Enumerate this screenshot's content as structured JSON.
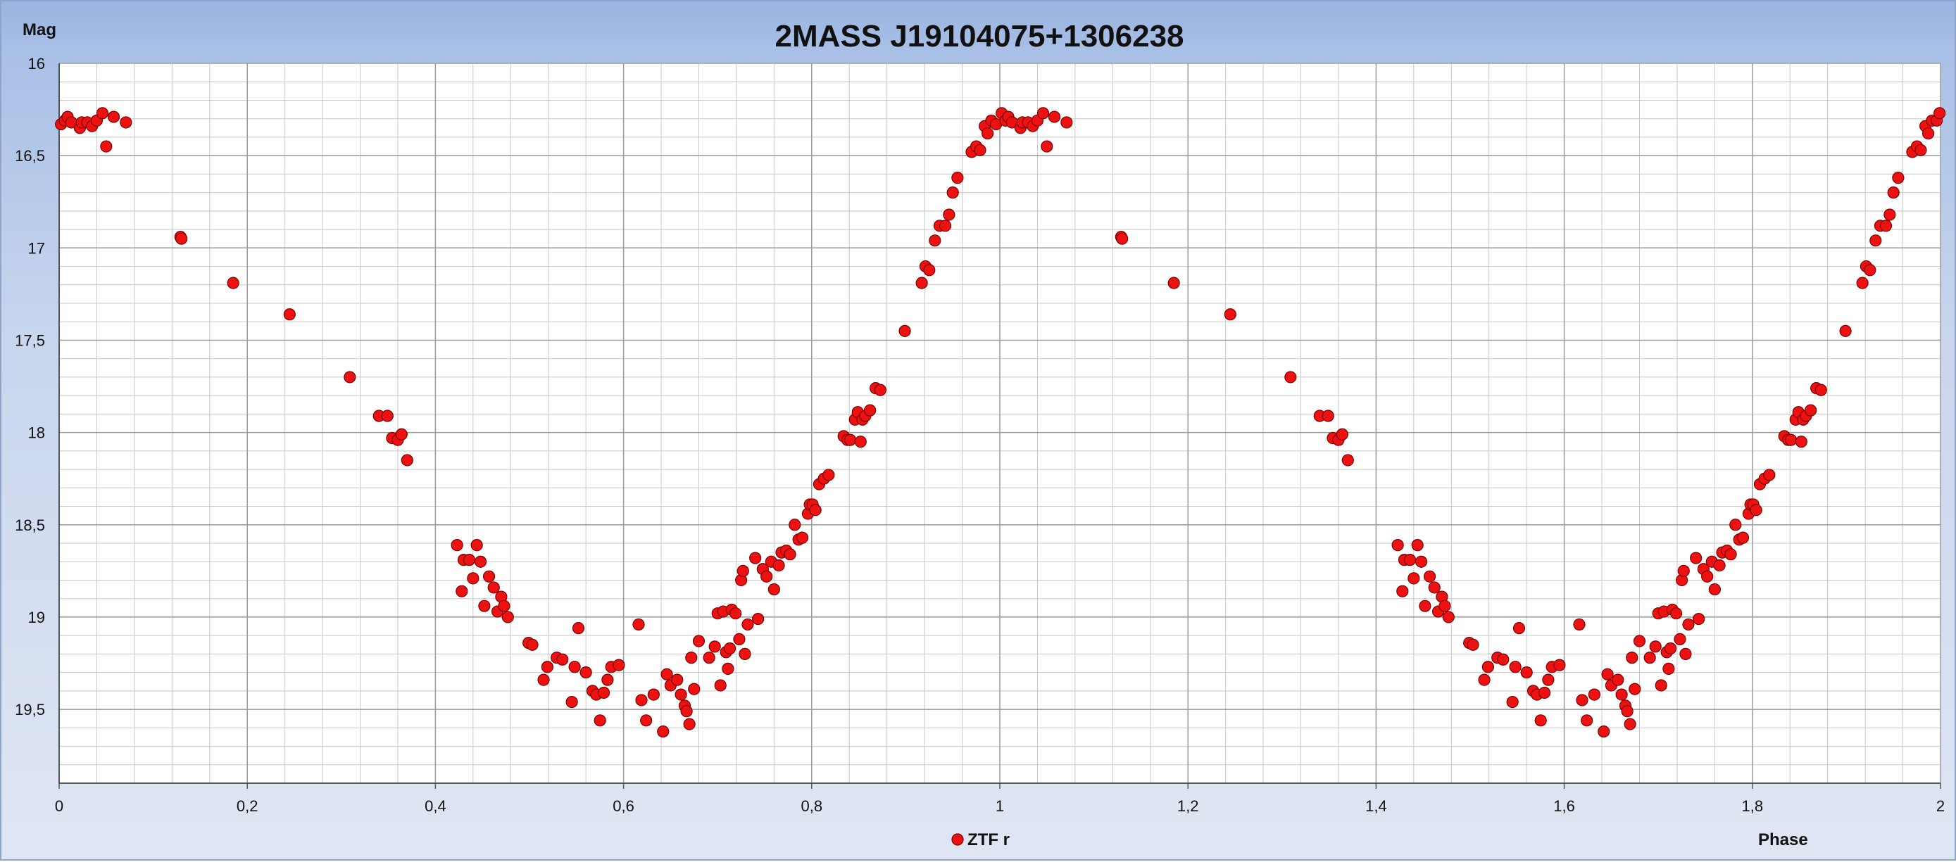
{
  "chart_data": {
    "type": "scatter",
    "title": "2MASS J19104075+1306238",
    "xlabel": "Phase",
    "ylabel": "Mag",
    "xlim": [
      0,
      2
    ],
    "ylim": [
      16,
      19.9
    ],
    "y_inverted": true,
    "x_ticks": [
      {
        "value": 0,
        "label": "0"
      },
      {
        "value": 0.2,
        "label": "0,2"
      },
      {
        "value": 0.4,
        "label": "0,4"
      },
      {
        "value": 0.6,
        "label": "0,6"
      },
      {
        "value": 0.8,
        "label": "0,8"
      },
      {
        "value": 1,
        "label": "1"
      },
      {
        "value": 1.2,
        "label": "1,2"
      },
      {
        "value": 1.4,
        "label": "1,4"
      },
      {
        "value": 1.6,
        "label": "1,6"
      },
      {
        "value": 1.8,
        "label": "1,8"
      },
      {
        "value": 2,
        "label": "2"
      }
    ],
    "y_ticks": [
      {
        "value": 16,
        "label": "16"
      },
      {
        "value": 16.5,
        "label": "16,5"
      },
      {
        "value": 17,
        "label": "17"
      },
      {
        "value": 17.5,
        "label": "17,5"
      },
      {
        "value": 18,
        "label": "18"
      },
      {
        "value": 18.5,
        "label": "18,5"
      },
      {
        "value": 19,
        "label": "19"
      },
      {
        "value": 19.5,
        "label": "19,5"
      }
    ],
    "grid": {
      "major": true,
      "minor": true,
      "x_minor_step": 0.04,
      "y_minor_step": 0.1
    },
    "legend": {
      "position": "bottom-center"
    },
    "colors": {
      "marker_fill": "#ee1111",
      "marker_stroke": "#7a0000",
      "plot_background": "#ffffff",
      "grid_major": "#9a9a9a",
      "grid_minor": "#c8c8c8"
    },
    "series": [
      {
        "name": "ZTF r",
        "points": [
          [
            0.002,
            16.33
          ],
          [
            0.006,
            16.31
          ],
          [
            0.009,
            16.29
          ],
          [
            0.013,
            16.32
          ],
          [
            0.022,
            16.35
          ],
          [
            0.024,
            16.32
          ],
          [
            0.03,
            16.32
          ],
          [
            0.035,
            16.34
          ],
          [
            0.04,
            16.31
          ],
          [
            0.046,
            16.27
          ],
          [
            0.05,
            16.45
          ],
          [
            0.058,
            16.29
          ],
          [
            0.071,
            16.32
          ],
          [
            0.129,
            16.94
          ],
          [
            0.13,
            16.95
          ],
          [
            0.185,
            17.19
          ],
          [
            0.245,
            17.36
          ],
          [
            0.309,
            17.7
          ],
          [
            0.34,
            17.91
          ],
          [
            0.349,
            17.91
          ],
          [
            0.354,
            18.03
          ],
          [
            0.36,
            18.04
          ],
          [
            0.364,
            18.01
          ],
          [
            0.37,
            18.15
          ],
          [
            0.423,
            18.61
          ],
          [
            0.428,
            18.86
          ],
          [
            0.43,
            18.69
          ],
          [
            0.436,
            18.69
          ],
          [
            0.44,
            18.79
          ],
          [
            0.444,
            18.61
          ],
          [
            0.448,
            18.7
          ],
          [
            0.452,
            18.94
          ],
          [
            0.457,
            18.78
          ],
          [
            0.462,
            18.84
          ],
          [
            0.466,
            18.97
          ],
          [
            0.47,
            18.89
          ],
          [
            0.473,
            18.94
          ],
          [
            0.477,
            19
          ],
          [
            0.499,
            19.14
          ],
          [
            0.503,
            19.15
          ],
          [
            0.515,
            19.34
          ],
          [
            0.519,
            19.27
          ],
          [
            0.529,
            19.22
          ],
          [
            0.535,
            19.23
          ],
          [
            0.545,
            19.46
          ],
          [
            0.548,
            19.27
          ],
          [
            0.552,
            19.06
          ],
          [
            0.56,
            19.3
          ],
          [
            0.567,
            19.4
          ],
          [
            0.571,
            19.42
          ],
          [
            0.575,
            19.56
          ],
          [
            0.579,
            19.41
          ],
          [
            0.583,
            19.34
          ],
          [
            0.587,
            19.27
          ],
          [
            0.595,
            19.26
          ],
          [
            0.616,
            19.04
          ],
          [
            0.619,
            19.45
          ],
          [
            0.624,
            19.56
          ],
          [
            0.632,
            19.42
          ],
          [
            0.642,
            19.62
          ],
          [
            0.646,
            19.31
          ],
          [
            0.65,
            19.37
          ],
          [
            0.657,
            19.34
          ],
          [
            0.661,
            19.42
          ],
          [
            0.665,
            19.48
          ],
          [
            0.667,
            19.51
          ],
          [
            0.67,
            19.58
          ],
          [
            0.672,
            19.22
          ],
          [
            0.675,
            19.39
          ],
          [
            0.68,
            19.13
          ],
          [
            0.691,
            19.22
          ],
          [
            0.697,
            19.16
          ],
          [
            0.7,
            18.98
          ],
          [
            0.703,
            19.37
          ],
          [
            0.706,
            18.97
          ],
          [
            0.709,
            19.19
          ],
          [
            0.711,
            19.28
          ],
          [
            0.713,
            19.17
          ],
          [
            0.715,
            18.96
          ],
          [
            0.719,
            18.98
          ],
          [
            0.723,
            19.12
          ],
          [
            0.725,
            18.8
          ],
          [
            0.727,
            18.75
          ],
          [
            0.729,
            19.2
          ],
          [
            0.732,
            19.04
          ],
          [
            0.74,
            18.68
          ],
          [
            0.743,
            19.01
          ],
          [
            0.748,
            18.74
          ],
          [
            0.752,
            18.78
          ],
          [
            0.757,
            18.7
          ],
          [
            0.76,
            18.85
          ],
          [
            0.765,
            18.72
          ],
          [
            0.768,
            18.65
          ],
          [
            0.773,
            18.64
          ],
          [
            0.777,
            18.66
          ],
          [
            0.782,
            18.5
          ],
          [
            0.786,
            18.58
          ],
          [
            0.79,
            18.57
          ],
          [
            0.796,
            18.44
          ],
          [
            0.798,
            18.39
          ],
          [
            0.801,
            18.39
          ],
          [
            0.804,
            18.42
          ],
          [
            0.808,
            18.28
          ],
          [
            0.813,
            18.25
          ],
          [
            0.818,
            18.23
          ],
          [
            0.834,
            18.02
          ],
          [
            0.838,
            18.04
          ],
          [
            0.841,
            18.04
          ],
          [
            0.846,
            17.93
          ],
          [
            0.849,
            17.89
          ],
          [
            0.852,
            18.05
          ],
          [
            0.854,
            17.93
          ],
          [
            0.857,
            17.91
          ],
          [
            0.862,
            17.88
          ],
          [
            0.868,
            17.76
          ],
          [
            0.873,
            17.77
          ],
          [
            0.899,
            17.45
          ],
          [
            0.917,
            17.19
          ],
          [
            0.921,
            17.1
          ],
          [
            0.925,
            17.12
          ],
          [
            0.931,
            16.96
          ],
          [
            0.936,
            16.88
          ],
          [
            0.942,
            16.88
          ],
          [
            0.946,
            16.82
          ],
          [
            0.95,
            16.7
          ],
          [
            0.955,
            16.62
          ],
          [
            0.97,
            16.48
          ],
          [
            0.975,
            16.45
          ],
          [
            0.979,
            16.47
          ],
          [
            0.984,
            16.34
          ],
          [
            0.987,
            16.38
          ],
          [
            0.991,
            16.31
          ],
          [
            0.996,
            16.33
          ],
          [
            1.002,
            16.27
          ],
          [
            1.006,
            16.31
          ],
          [
            1.009,
            16.29
          ],
          [
            1.013,
            16.32
          ],
          [
            1.022,
            16.35
          ],
          [
            1.024,
            16.32
          ],
          [
            1.03,
            16.32
          ],
          [
            1.035,
            16.34
          ],
          [
            1.04,
            16.31
          ],
          [
            1.046,
            16.27
          ],
          [
            1.05,
            16.45
          ],
          [
            1.058,
            16.29
          ],
          [
            1.071,
            16.32
          ],
          [
            1.129,
            16.94
          ],
          [
            1.13,
            16.95
          ],
          [
            1.185,
            17.19
          ],
          [
            1.245,
            17.36
          ],
          [
            1.309,
            17.7
          ],
          [
            1.34,
            17.91
          ],
          [
            1.349,
            17.91
          ],
          [
            1.354,
            18.03
          ],
          [
            1.36,
            18.04
          ],
          [
            1.364,
            18.01
          ],
          [
            1.37,
            18.15
          ],
          [
            1.423,
            18.61
          ],
          [
            1.428,
            18.86
          ],
          [
            1.43,
            18.69
          ],
          [
            1.436,
            18.69
          ],
          [
            1.44,
            18.79
          ],
          [
            1.444,
            18.61
          ],
          [
            1.448,
            18.7
          ],
          [
            1.452,
            18.94
          ],
          [
            1.457,
            18.78
          ],
          [
            1.462,
            18.84
          ],
          [
            1.466,
            18.97
          ],
          [
            1.47,
            18.89
          ],
          [
            1.473,
            18.94
          ],
          [
            1.477,
            19
          ],
          [
            1.499,
            19.14
          ],
          [
            1.503,
            19.15
          ],
          [
            1.515,
            19.34
          ],
          [
            1.519,
            19.27
          ],
          [
            1.529,
            19.22
          ],
          [
            1.535,
            19.23
          ],
          [
            1.545,
            19.46
          ],
          [
            1.548,
            19.27
          ],
          [
            1.552,
            19.06
          ],
          [
            1.56,
            19.3
          ],
          [
            1.567,
            19.4
          ],
          [
            1.571,
            19.42
          ],
          [
            1.575,
            19.56
          ],
          [
            1.579,
            19.41
          ],
          [
            1.583,
            19.34
          ],
          [
            1.587,
            19.27
          ],
          [
            1.595,
            19.26
          ],
          [
            1.616,
            19.04
          ],
          [
            1.619,
            19.45
          ],
          [
            1.624,
            19.56
          ],
          [
            1.632,
            19.42
          ],
          [
            1.642,
            19.62
          ],
          [
            1.646,
            19.31
          ],
          [
            1.65,
            19.37
          ],
          [
            1.657,
            19.34
          ],
          [
            1.661,
            19.42
          ],
          [
            1.665,
            19.48
          ],
          [
            1.667,
            19.51
          ],
          [
            1.67,
            19.58
          ],
          [
            1.672,
            19.22
          ],
          [
            1.675,
            19.39
          ],
          [
            1.68,
            19.13
          ],
          [
            1.691,
            19.22
          ],
          [
            1.697,
            19.16
          ],
          [
            1.7,
            18.98
          ],
          [
            1.703,
            19.37
          ],
          [
            1.706,
            18.97
          ],
          [
            1.709,
            19.19
          ],
          [
            1.711,
            19.28
          ],
          [
            1.713,
            19.17
          ],
          [
            1.715,
            18.96
          ],
          [
            1.719,
            18.98
          ],
          [
            1.723,
            19.12
          ],
          [
            1.725,
            18.8
          ],
          [
            1.727,
            18.75
          ],
          [
            1.729,
            19.2
          ],
          [
            1.732,
            19.04
          ],
          [
            1.74,
            18.68
          ],
          [
            1.743,
            19.01
          ],
          [
            1.748,
            18.74
          ],
          [
            1.752,
            18.78
          ],
          [
            1.757,
            18.7
          ],
          [
            1.76,
            18.85
          ],
          [
            1.765,
            18.72
          ],
          [
            1.768,
            18.65
          ],
          [
            1.773,
            18.64
          ],
          [
            1.777,
            18.66
          ],
          [
            1.782,
            18.5
          ],
          [
            1.786,
            18.58
          ],
          [
            1.79,
            18.57
          ],
          [
            1.796,
            18.44
          ],
          [
            1.798,
            18.39
          ],
          [
            1.801,
            18.39
          ],
          [
            1.804,
            18.42
          ],
          [
            1.808,
            18.28
          ],
          [
            1.813,
            18.25
          ],
          [
            1.818,
            18.23
          ],
          [
            1.834,
            18.02
          ],
          [
            1.838,
            18.04
          ],
          [
            1.841,
            18.04
          ],
          [
            1.846,
            17.93
          ],
          [
            1.849,
            17.89
          ],
          [
            1.852,
            18.05
          ],
          [
            1.854,
            17.93
          ],
          [
            1.857,
            17.91
          ],
          [
            1.862,
            17.88
          ],
          [
            1.868,
            17.76
          ],
          [
            1.873,
            17.77
          ],
          [
            1.899,
            17.45
          ],
          [
            1.917,
            17.19
          ],
          [
            1.921,
            17.1
          ],
          [
            1.925,
            17.12
          ],
          [
            1.931,
            16.96
          ],
          [
            1.936,
            16.88
          ],
          [
            1.942,
            16.88
          ],
          [
            1.946,
            16.82
          ],
          [
            1.95,
            16.7
          ],
          [
            1.955,
            16.62
          ],
          [
            1.97,
            16.48
          ],
          [
            1.975,
            16.45
          ],
          [
            1.979,
            16.47
          ],
          [
            1.984,
            16.34
          ],
          [
            1.987,
            16.38
          ],
          [
            1.991,
            16.31
          ],
          [
            1.996,
            16.31
          ],
          [
            1.999,
            16.27
          ]
        ]
      }
    ]
  }
}
